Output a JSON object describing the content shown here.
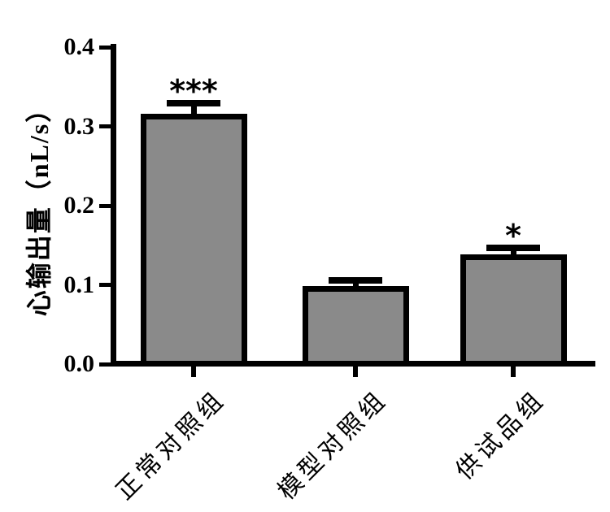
{
  "chart_data": {
    "type": "bar",
    "title": "",
    "xlabel": "",
    "ylabel": "心输出量（nL/s）",
    "categories": [
      "正常对照组",
      "模型对照组",
      "供试品组"
    ],
    "values": [
      0.316,
      0.098,
      0.138
    ],
    "errors": [
      0.013,
      0.008,
      0.009
    ],
    "significance": [
      "***",
      "",
      "*"
    ],
    "ylim": [
      0.0,
      0.4
    ],
    "yticks": [
      0.0,
      0.1,
      0.2,
      0.3,
      0.4
    ],
    "ytick_labels": [
      "0.0",
      "0.1",
      "0.2",
      "0.3",
      "0.4"
    ],
    "grid": false,
    "legend": "none",
    "bar_color": "#8A8A8A",
    "bar_border_color": "#000000",
    "axis_color": "#000000",
    "background_color": "#FFFFFF"
  }
}
